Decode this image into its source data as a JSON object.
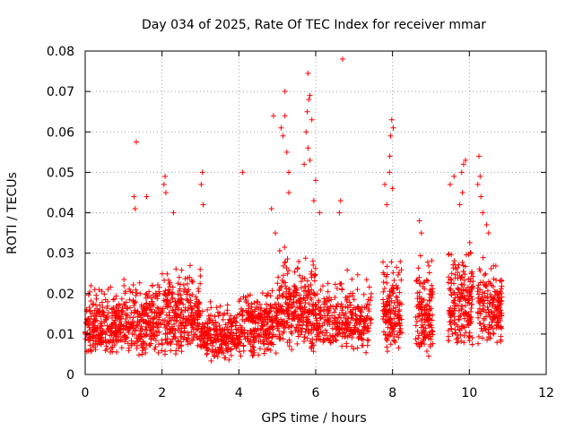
{
  "chart_data": {
    "type": "scatter",
    "title": "Day 034 of 2025, Rate Of TEC Index for receiver mmar",
    "xlabel": "GPS time / hours",
    "ylabel": "ROTI / TECUs",
    "xlim": [
      0,
      12
    ],
    "ylim": [
      0,
      0.08
    ],
    "grid": true,
    "marker": "+",
    "x_ticks": [
      0,
      2,
      4,
      6,
      8,
      10,
      12
    ],
    "x_tick_labels": [
      "0",
      "2",
      "4",
      "6",
      "8",
      "10",
      "12"
    ],
    "y_ticks": [
      0,
      0.01,
      0.02,
      0.03,
      0.04,
      0.05,
      0.06,
      0.07,
      0.08
    ],
    "y_tick_labels": [
      "0",
      "0.01",
      "0.02",
      "0.03",
      "0.04",
      "0.05",
      "0.06",
      "0.07",
      "0.08"
    ],
    "series": [
      {
        "name": "ROTI",
        "color": "#ff0000",
        "clusters": [
          {
            "x_start": 0.0,
            "x_end": 1.0,
            "y_low": 0.004,
            "y_high": 0.022,
            "count": 260
          },
          {
            "x_start": 1.0,
            "x_end": 2.0,
            "y_low": 0.004,
            "y_high": 0.025,
            "count": 260
          },
          {
            "x_start": 2.0,
            "x_end": 3.0,
            "y_low": 0.004,
            "y_high": 0.028,
            "count": 280
          },
          {
            "x_start": 3.0,
            "x_end": 4.0,
            "y_low": 0.003,
            "y_high": 0.018,
            "count": 240
          },
          {
            "x_start": 4.0,
            "x_end": 5.0,
            "y_low": 0.004,
            "y_high": 0.022,
            "count": 260
          },
          {
            "x_start": 5.0,
            "x_end": 6.0,
            "y_low": 0.005,
            "y_high": 0.03,
            "count": 300
          },
          {
            "x_start": 6.0,
            "x_end": 7.45,
            "y_low": 0.005,
            "y_high": 0.025,
            "count": 320
          },
          {
            "x_start": 7.75,
            "x_end": 8.25,
            "y_low": 0.005,
            "y_high": 0.03,
            "count": 150
          },
          {
            "x_start": 8.6,
            "x_end": 9.05,
            "y_low": 0.004,
            "y_high": 0.028,
            "count": 140
          },
          {
            "x_start": 9.45,
            "x_end": 10.1,
            "y_low": 0.006,
            "y_high": 0.032,
            "count": 200
          },
          {
            "x_start": 10.2,
            "x_end": 10.85,
            "y_low": 0.006,
            "y_high": 0.028,
            "count": 180
          }
        ],
        "points": [
          [
            1.33,
            0.0575
          ],
          [
            1.6,
            0.044
          ],
          [
            1.27,
            0.044
          ],
          [
            1.3,
            0.041
          ],
          [
            2.08,
            0.049
          ],
          [
            2.05,
            0.047
          ],
          [
            2.1,
            0.045
          ],
          [
            2.3,
            0.04
          ],
          [
            3.05,
            0.05
          ],
          [
            3.02,
            0.047
          ],
          [
            3.07,
            0.042
          ],
          [
            4.1,
            0.05
          ],
          [
            4.9,
            0.064
          ],
          [
            5.1,
            0.061
          ],
          [
            5.2,
            0.064
          ],
          [
            5.15,
            0.059
          ],
          [
            5.25,
            0.055
          ],
          [
            5.3,
            0.05
          ],
          [
            4.85,
            0.041
          ],
          [
            4.95,
            0.035
          ],
          [
            5.2,
            0.07
          ],
          [
            5.3,
            0.045
          ],
          [
            5.8,
            0.0745
          ],
          [
            5.85,
            0.069
          ],
          [
            5.82,
            0.068
          ],
          [
            5.78,
            0.065
          ],
          [
            5.9,
            0.063
          ],
          [
            5.75,
            0.06
          ],
          [
            5.8,
            0.056
          ],
          [
            5.85,
            0.053
          ],
          [
            6.0,
            0.048
          ],
          [
            5.95,
            0.043
          ],
          [
            6.1,
            0.04
          ],
          [
            5.7,
            0.052
          ],
          [
            6.7,
            0.078
          ],
          [
            6.65,
            0.043
          ],
          [
            6.62,
            0.04
          ],
          [
            7.8,
            0.047
          ],
          [
            7.85,
            0.042
          ],
          [
            7.98,
            0.063
          ],
          [
            8.02,
            0.061
          ],
          [
            7.95,
            0.059
          ],
          [
            7.93,
            0.054
          ],
          [
            7.92,
            0.05
          ],
          [
            8.0,
            0.046
          ],
          [
            8.7,
            0.038
          ],
          [
            8.75,
            0.035
          ],
          [
            9.5,
            0.047
          ],
          [
            9.6,
            0.049
          ],
          [
            9.85,
            0.052
          ],
          [
            9.9,
            0.053
          ],
          [
            9.8,
            0.05
          ],
          [
            9.82,
            0.045
          ],
          [
            9.75,
            0.042
          ],
          [
            10.25,
            0.054
          ],
          [
            10.28,
            0.049
          ],
          [
            10.22,
            0.047
          ],
          [
            10.3,
            0.044
          ],
          [
            10.35,
            0.04
          ],
          [
            10.45,
            0.037
          ],
          [
            10.5,
            0.035
          ]
        ]
      }
    ]
  }
}
